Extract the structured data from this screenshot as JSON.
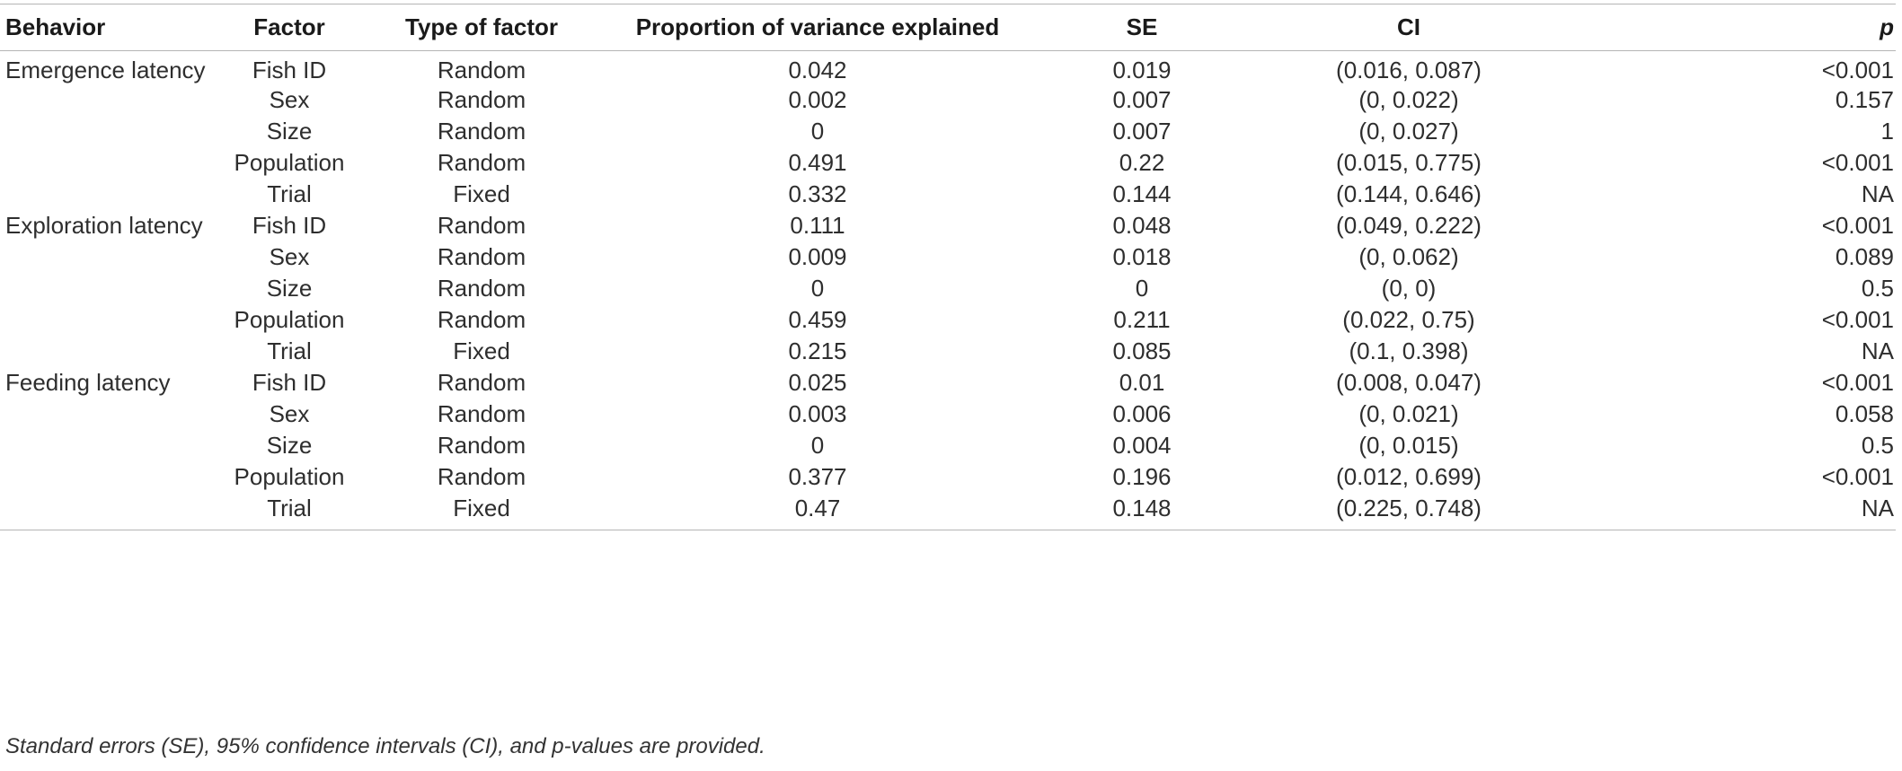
{
  "table": {
    "headers": {
      "behavior": "Behavior",
      "factor": "Factor",
      "type": "Type of factor",
      "variance": "Proportion of variance explained",
      "se": "SE",
      "ci": "CI",
      "p": "p"
    },
    "rows": [
      {
        "behavior": "Emergence latency",
        "factor": "Fish ID",
        "type": "Random",
        "variance": "0.042",
        "se": "0.019",
        "ci": "(0.016, 0.087)",
        "p": "<0.001"
      },
      {
        "behavior": "",
        "factor": "Sex",
        "type": "Random",
        "variance": "0.002",
        "se": "0.007",
        "ci": "(0, 0.022)",
        "p": "0.157"
      },
      {
        "behavior": "",
        "factor": "Size",
        "type": "Random",
        "variance": "0",
        "se": "0.007",
        "ci": "(0, 0.027)",
        "p": "1"
      },
      {
        "behavior": "",
        "factor": "Population",
        "type": "Random",
        "variance": "0.491",
        "se": "0.22",
        "ci": "(0.015, 0.775)",
        "p": "<0.001"
      },
      {
        "behavior": "",
        "factor": "Trial",
        "type": "Fixed",
        "variance": "0.332",
        "se": "0.144",
        "ci": "(0.144, 0.646)",
        "p": "NA"
      },
      {
        "behavior": "Exploration latency",
        "factor": "Fish ID",
        "type": "Random",
        "variance": "0.111",
        "se": "0.048",
        "ci": "(0.049, 0.222)",
        "p": "<0.001"
      },
      {
        "behavior": "",
        "factor": "Sex",
        "type": "Random",
        "variance": "0.009",
        "se": "0.018",
        "ci": "(0, 0.062)",
        "p": "0.089"
      },
      {
        "behavior": "",
        "factor": "Size",
        "type": "Random",
        "variance": "0",
        "se": "0",
        "ci": "(0, 0)",
        "p": "0.5"
      },
      {
        "behavior": "",
        "factor": "Population",
        "type": "Random",
        "variance": "0.459",
        "se": "0.211",
        "ci": "(0.022, 0.75)",
        "p": "<0.001"
      },
      {
        "behavior": "",
        "factor": "Trial",
        "type": "Fixed",
        "variance": "0.215",
        "se": "0.085",
        "ci": "(0.1, 0.398)",
        "p": "NA"
      },
      {
        "behavior": "Feeding latency",
        "factor": "Fish ID",
        "type": "Random",
        "variance": "0.025",
        "se": "0.01",
        "ci": "(0.008, 0.047)",
        "p": "<0.001"
      },
      {
        "behavior": "",
        "factor": "Sex",
        "type": "Random",
        "variance": "0.003",
        "se": "0.006",
        "ci": "(0, 0.021)",
        "p": "0.058"
      },
      {
        "behavior": "",
        "factor": "Size",
        "type": "Random",
        "variance": "0",
        "se": "0.004",
        "ci": "(0, 0.015)",
        "p": "0.5"
      },
      {
        "behavior": "",
        "factor": "Population",
        "type": "Random",
        "variance": "0.377",
        "se": "0.196",
        "ci": "(0.012, 0.699)",
        "p": "<0.001"
      },
      {
        "behavior": "",
        "factor": "Trial",
        "type": "Fixed",
        "variance": "0.47",
        "se": "0.148",
        "ci": "(0.225, 0.748)",
        "p": "NA"
      }
    ]
  },
  "footnote": "Standard errors (SE), 95% confidence intervals (CI), and p-values are provided."
}
